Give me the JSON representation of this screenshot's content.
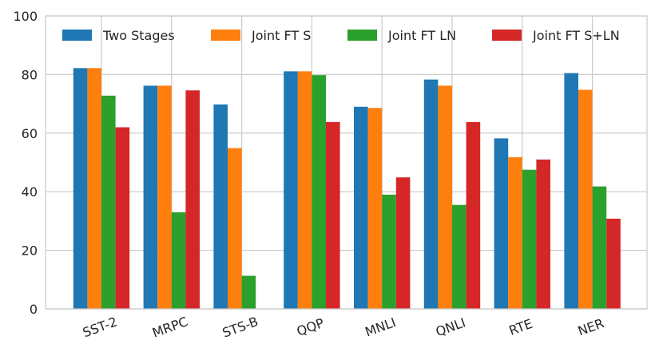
{
  "chart_data": {
    "type": "bar",
    "title": "",
    "xlabel": "",
    "ylabel": "",
    "ylim": [
      0,
      100
    ],
    "yticks": [
      0,
      20,
      40,
      60,
      80,
      100
    ],
    "grid": true,
    "legend_position": "top",
    "categories": [
      "SST-2",
      "MRPC",
      "STS-B",
      "QQP",
      "MNLI",
      "QNLI",
      "RTE",
      "NER"
    ],
    "series": [
      {
        "name": "Two Stages",
        "color": "#1f77b4",
        "values": [
          82.2,
          76.2,
          69.8,
          81.1,
          69.0,
          78.3,
          58.2,
          80.5
        ]
      },
      {
        "name": "Joint FT S",
        "color": "#ff7f0e",
        "values": [
          82.2,
          76.2,
          54.9,
          81.1,
          68.6,
          76.2,
          51.8,
          74.8
        ]
      },
      {
        "name": "Joint FT LN",
        "color": "#2ca02c",
        "values": [
          72.8,
          33.0,
          11.3,
          79.8,
          39.0,
          35.5,
          47.5,
          41.8
        ]
      },
      {
        "name": "Joint FT S+LN",
        "color": "#d62728",
        "values": [
          62.0,
          74.6,
          0,
          63.8,
          44.9,
          63.8,
          51.0,
          30.8
        ]
      }
    ]
  }
}
